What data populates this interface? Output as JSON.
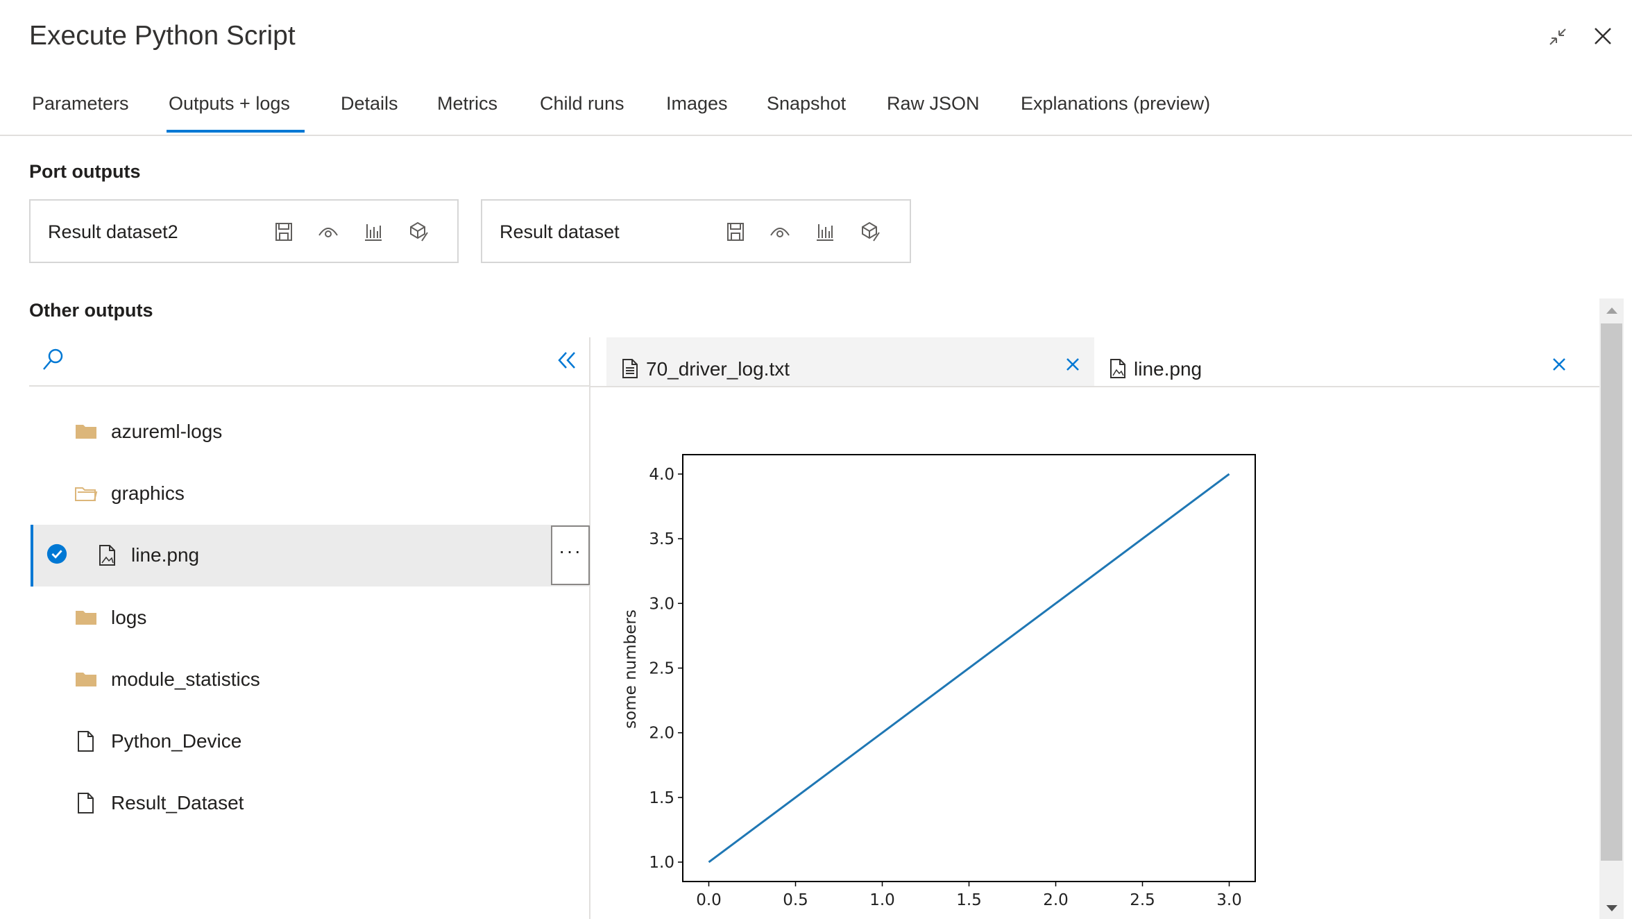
{
  "window": {
    "title": "Execute Python Script"
  },
  "tabs": [
    {
      "label": "Parameters"
    },
    {
      "label": "Outputs + logs",
      "active": true
    },
    {
      "label": "Details"
    },
    {
      "label": "Metrics"
    },
    {
      "label": "Child runs"
    },
    {
      "label": "Images"
    },
    {
      "label": "Snapshot"
    },
    {
      "label": "Raw JSON"
    },
    {
      "label": "Explanations (preview)"
    }
  ],
  "port_outputs": {
    "heading": "Port outputs",
    "cards": [
      {
        "label": "Result dataset2"
      },
      {
        "label": "Result dataset"
      }
    ],
    "icons": [
      "save-icon",
      "preview-eye-icon",
      "visualize-chart-icon",
      "register-dataset-icon"
    ]
  },
  "other_outputs": {
    "heading": "Other outputs",
    "tree": [
      {
        "label": "azureml-logs",
        "type": "folder"
      },
      {
        "label": "graphics",
        "type": "folder-open"
      },
      {
        "label": "line.png",
        "type": "image",
        "selected": true
      },
      {
        "label": "logs",
        "type": "folder"
      },
      {
        "label": "module_statistics",
        "type": "folder"
      },
      {
        "label": "Python_Device",
        "type": "file"
      },
      {
        "label": "Result_Dataset",
        "type": "file"
      }
    ],
    "more_label": "···"
  },
  "file_tabs": [
    {
      "label": "70_driver_log.txt",
      "icon": "text-file-icon"
    },
    {
      "label": "line.png",
      "icon": "image-file-icon",
      "active": true
    }
  ],
  "colors": {
    "accent": "#0078d4",
    "line": "#1f77b4",
    "folder": "#dcb67a"
  },
  "chart_data": {
    "type": "line",
    "x": [
      0,
      1,
      2,
      3
    ],
    "series": [
      {
        "values": [
          1,
          2,
          3,
          4
        ]
      }
    ],
    "xlabel": "",
    "ylabel": "some numbers",
    "xlim": [
      -0.15,
      3.15
    ],
    "ylim": [
      0.85,
      4.15
    ],
    "xticks": [
      "0.0",
      "0.5",
      "1.0",
      "1.5",
      "2.0",
      "2.5",
      "3.0"
    ],
    "yticks": [
      "1.0",
      "1.5",
      "2.0",
      "2.5",
      "3.0",
      "3.5",
      "4.0"
    ],
    "grid": false
  }
}
